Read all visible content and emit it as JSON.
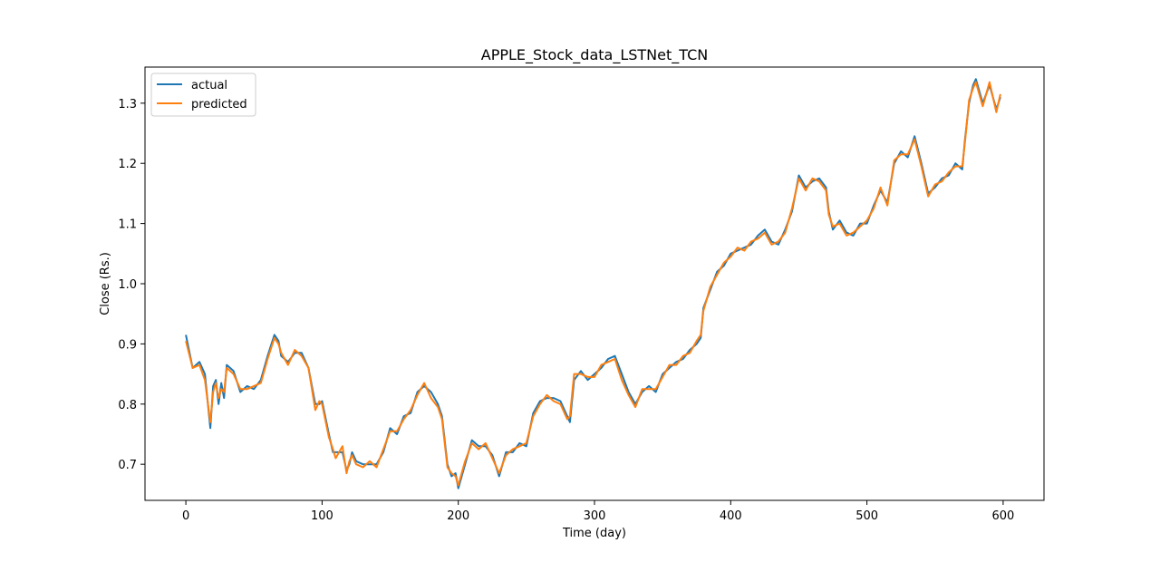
{
  "chart_data": {
    "type": "line",
    "title": "APPLE_Stock_data_LSTNet_TCN",
    "xlabel": "Time (day)",
    "ylabel": "Close (Rs.)",
    "xlim": [
      -30,
      630
    ],
    "ylim": [
      0.64,
      1.36
    ],
    "xticks": [
      0,
      100,
      200,
      300,
      400,
      500,
      600
    ],
    "yticks": [
      0.7,
      0.8,
      0.9,
      1.0,
      1.1,
      1.2,
      1.3
    ],
    "ytick_labels": [
      "0.7",
      "0.8",
      "0.9",
      "1.0",
      "1.1",
      "1.2",
      "1.3"
    ],
    "legend_position": "upper-left",
    "grid": false,
    "x": [
      0,
      5,
      10,
      14,
      18,
      20,
      22,
      24,
      26,
      28,
      30,
      35,
      40,
      45,
      50,
      55,
      60,
      65,
      68,
      70,
      75,
      80,
      85,
      90,
      95,
      98,
      100,
      105,
      108,
      110,
      115,
      118,
      120,
      122,
      125,
      130,
      135,
      140,
      145,
      150,
      155,
      160,
      165,
      170,
      175,
      180,
      185,
      188,
      190,
      192,
      195,
      198,
      200,
      205,
      210,
      215,
      220,
      225,
      230,
      235,
      240,
      245,
      250,
      255,
      260,
      265,
      270,
      275,
      280,
      282,
      285,
      290,
      295,
      300,
      305,
      310,
      315,
      320,
      325,
      330,
      335,
      340,
      345,
      350,
      355,
      360,
      365,
      370,
      375,
      378,
      380,
      385,
      390,
      395,
      400,
      405,
      410,
      415,
      420,
      425,
      430,
      435,
      440,
      445,
      450,
      455,
      460,
      465,
      470,
      472,
      475,
      480,
      485,
      490,
      495,
      500,
      505,
      510,
      515,
      520,
      525,
      530,
      535,
      540,
      545,
      550,
      555,
      560,
      565,
      570,
      572,
      575,
      578,
      580,
      585,
      590,
      595,
      598
    ],
    "series": [
      {
        "name": "actual",
        "color": "#1f77b4",
        "y": [
          0.915,
          0.86,
          0.87,
          0.85,
          0.76,
          0.83,
          0.84,
          0.8,
          0.835,
          0.81,
          0.865,
          0.855,
          0.82,
          0.83,
          0.825,
          0.84,
          0.88,
          0.915,
          0.905,
          0.88,
          0.87,
          0.885,
          0.885,
          0.86,
          0.8,
          0.8,
          0.805,
          0.75,
          0.72,
          0.72,
          0.72,
          0.69,
          0.7,
          0.72,
          0.705,
          0.7,
          0.7,
          0.7,
          0.72,
          0.76,
          0.75,
          0.78,
          0.785,
          0.82,
          0.83,
          0.82,
          0.8,
          0.78,
          0.74,
          0.7,
          0.68,
          0.685,
          0.66,
          0.7,
          0.74,
          0.73,
          0.73,
          0.715,
          0.68,
          0.72,
          0.72,
          0.735,
          0.73,
          0.785,
          0.805,
          0.81,
          0.81,
          0.805,
          0.78,
          0.77,
          0.84,
          0.855,
          0.84,
          0.85,
          0.86,
          0.875,
          0.88,
          0.85,
          0.82,
          0.8,
          0.82,
          0.83,
          0.82,
          0.85,
          0.86,
          0.87,
          0.875,
          0.89,
          0.9,
          0.91,
          0.96,
          0.99,
          1.02,
          1.03,
          1.05,
          1.055,
          1.06,
          1.065,
          1.08,
          1.09,
          1.07,
          1.065,
          1.09,
          1.12,
          1.18,
          1.16,
          1.17,
          1.175,
          1.16,
          1.12,
          1.09,
          1.105,
          1.085,
          1.08,
          1.1,
          1.1,
          1.13,
          1.155,
          1.135,
          1.2,
          1.22,
          1.21,
          1.245,
          1.2,
          1.15,
          1.16,
          1.175,
          1.18,
          1.2,
          1.19,
          1.24,
          1.3,
          1.33,
          1.34,
          1.3,
          1.33,
          1.29,
          1.31
        ]
      },
      {
        "name": "predicted",
        "color": "#ff7f0e",
        "y": [
          0.905,
          0.86,
          0.865,
          0.84,
          0.77,
          0.82,
          0.835,
          0.81,
          0.825,
          0.82,
          0.86,
          0.85,
          0.825,
          0.825,
          0.83,
          0.835,
          0.875,
          0.91,
          0.9,
          0.885,
          0.865,
          0.89,
          0.88,
          0.86,
          0.79,
          0.805,
          0.8,
          0.745,
          0.725,
          0.71,
          0.73,
          0.685,
          0.705,
          0.715,
          0.7,
          0.695,
          0.705,
          0.695,
          0.725,
          0.755,
          0.755,
          0.775,
          0.79,
          0.815,
          0.835,
          0.81,
          0.795,
          0.775,
          0.735,
          0.695,
          0.685,
          0.68,
          0.665,
          0.705,
          0.735,
          0.725,
          0.735,
          0.71,
          0.685,
          0.715,
          0.725,
          0.73,
          0.735,
          0.78,
          0.8,
          0.815,
          0.805,
          0.8,
          0.775,
          0.78,
          0.85,
          0.85,
          0.845,
          0.845,
          0.865,
          0.87,
          0.875,
          0.84,
          0.815,
          0.795,
          0.825,
          0.825,
          0.825,
          0.845,
          0.865,
          0.865,
          0.88,
          0.885,
          0.905,
          0.915,
          0.955,
          0.995,
          1.015,
          1.035,
          1.045,
          1.06,
          1.055,
          1.07,
          1.075,
          1.085,
          1.065,
          1.07,
          1.085,
          1.125,
          1.175,
          1.155,
          1.175,
          1.17,
          1.155,
          1.115,
          1.095,
          1.1,
          1.08,
          1.085,
          1.095,
          1.105,
          1.125,
          1.16,
          1.13,
          1.205,
          1.215,
          1.215,
          1.24,
          1.195,
          1.145,
          1.165,
          1.17,
          1.185,
          1.195,
          1.195,
          1.235,
          1.305,
          1.325,
          1.335,
          1.295,
          1.335,
          1.285,
          1.315
        ]
      }
    ]
  }
}
